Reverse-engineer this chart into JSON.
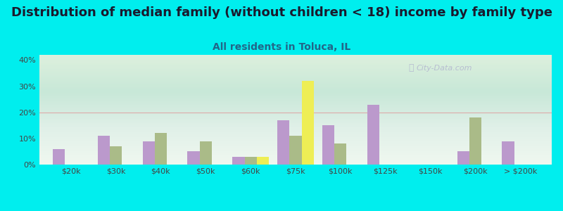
{
  "title": "Distribution of median family (without children < 18) income by family type",
  "subtitle": "All residents in Toluca, IL",
  "categories": [
    "$20k",
    "$30k",
    "$40k",
    "$50k",
    "$60k",
    "$75k",
    "$100k",
    "$125k",
    "$150k",
    "$200k",
    "> $200k"
  ],
  "married_couple": [
    6,
    11,
    9,
    5,
    3,
    17,
    15,
    23,
    0,
    5,
    9
  ],
  "male_no_wife": [
    0,
    7,
    12,
    9,
    3,
    11,
    8,
    0,
    0,
    18,
    0
  ],
  "female_no_husband": [
    0,
    0,
    0,
    0,
    3,
    32,
    0,
    0,
    0,
    0,
    0
  ],
  "color_married": "#bb99cc",
  "color_male": "#aabb88",
  "color_female": "#eeee55",
  "bg_outer": "#00eeee",
  "ylim": [
    0,
    42
  ],
  "yticks": [
    0,
    10,
    20,
    30,
    40
  ],
  "ytick_labels": [
    "0%",
    "10%",
    "20%",
    "30%",
    "40%"
  ],
  "title_fontsize": 13,
  "subtitle_fontsize": 10,
  "bar_width": 0.27,
  "watermark": "City-Data.com"
}
